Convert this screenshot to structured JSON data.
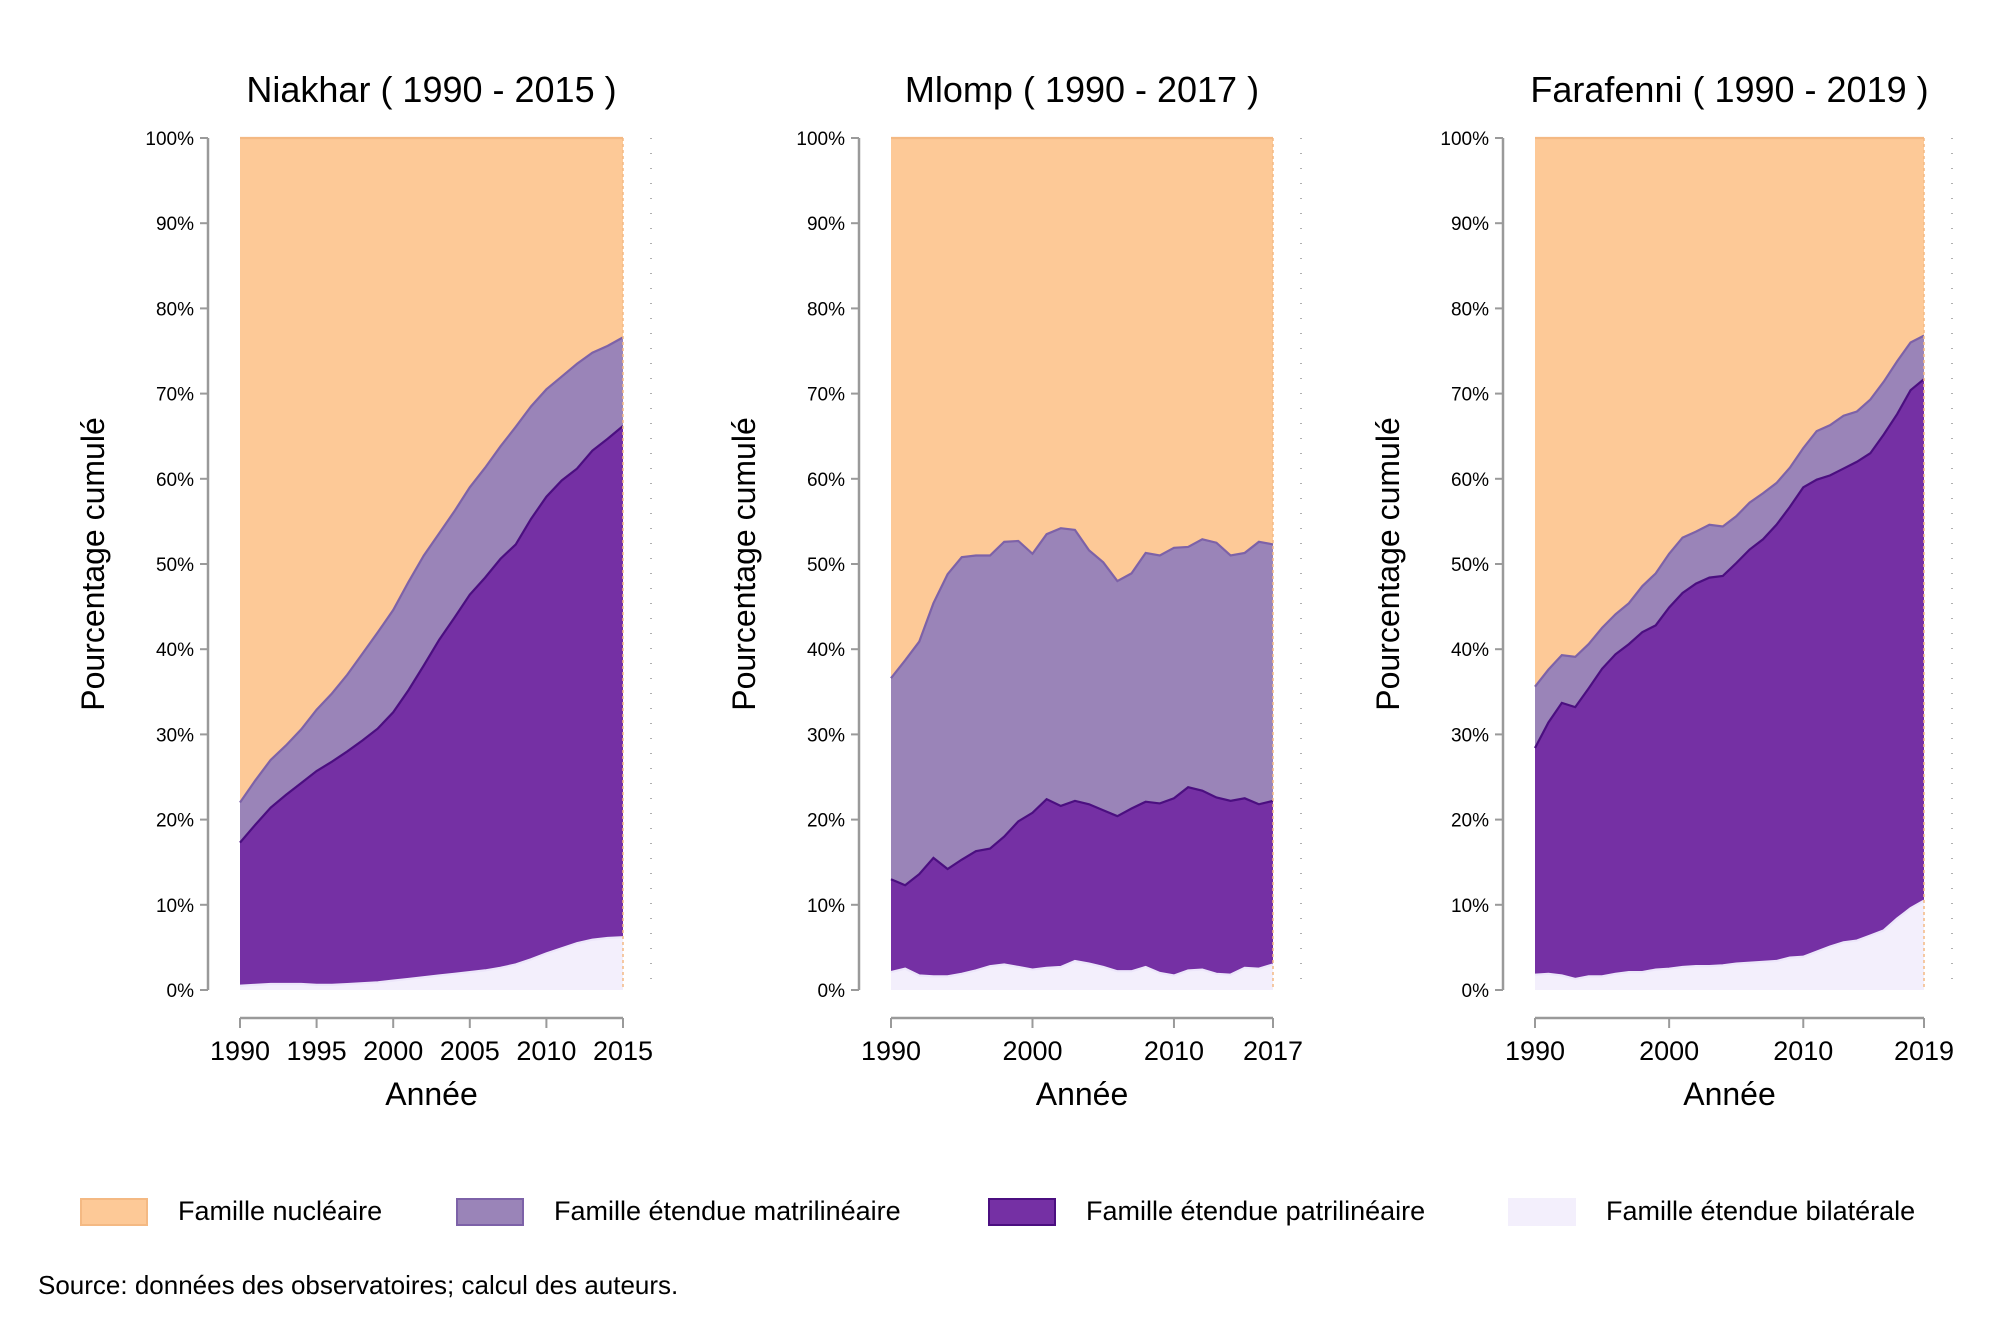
{
  "chart_data": [
    {
      "type": "area",
      "stacked": "percent",
      "title": "Niakhar ( 1990 - 2015 )",
      "xlabel": "Année",
      "ylabel": "Pourcentage cumulé",
      "xlim": [
        1990,
        2015
      ],
      "ylim": [
        0,
        100
      ],
      "xticks": [
        "1990",
        "1995",
        "2000",
        "2005",
        "2010",
        "2015"
      ],
      "yticks": [
        "0%",
        "10%",
        "20%",
        "30%",
        "40%",
        "50%",
        "60%",
        "70%",
        "80%",
        "90%",
        "100%"
      ],
      "x": [
        1990,
        1991,
        1992,
        1993,
        1994,
        1995,
        1996,
        1997,
        1998,
        1999,
        2000,
        2001,
        2002,
        2003,
        2004,
        2005,
        2006,
        2007,
        2008,
        2009,
        2010,
        2011,
        2012,
        2013,
        2014,
        2015
      ],
      "series": [
        {
          "name": "Famille étendue bilatérale",
          "values": [
            0.5,
            0.6,
            0.7,
            0.7,
            0.7,
            0.6,
            0.6,
            0.7,
            0.8,
            0.9,
            1.1,
            1.3,
            1.5,
            1.7,
            1.9,
            2.1,
            2.3,
            2.6,
            3.0,
            3.6,
            4.3,
            4.9,
            5.5,
            5.9,
            6.1,
            6.2
          ]
        },
        {
          "name": "Famille étendue patrilinéaire",
          "values": [
            17.3,
            19.4,
            21.4,
            22.9,
            24.3,
            25.7,
            26.8,
            28.0,
            29.3,
            30.7,
            32.6,
            35.2,
            38.1,
            41.1,
            43.7,
            46.4,
            48.4,
            50.6,
            52.3,
            55.3,
            57.9,
            59.8,
            61.2,
            63.3,
            64.7,
            66.2
          ]
        },
        {
          "name": "Famille étendue matrilinéaire",
          "values": [
            22.0,
            24.6,
            27.0,
            28.7,
            30.6,
            32.9,
            34.8,
            37.0,
            39.5,
            42.0,
            44.6,
            47.9,
            51.0,
            53.6,
            56.2,
            59.0,
            61.3,
            63.8,
            66.1,
            68.5,
            70.5,
            72.0,
            73.5,
            74.8,
            75.6,
            76.6
          ]
        },
        {
          "name": "Famille nucléaire",
          "values": [
            100,
            100,
            100,
            100,
            100,
            100,
            100,
            100,
            100,
            100,
            100,
            100,
            100,
            100,
            100,
            100,
            100,
            100,
            100,
            100,
            100,
            100,
            100,
            100,
            100,
            100
          ]
        }
      ]
    },
    {
      "type": "area",
      "stacked": "percent",
      "title": "Mlomp ( 1990 - 2017 )",
      "xlabel": "Année",
      "ylabel": "Pourcentage cumulé",
      "xlim": [
        1990,
        2017
      ],
      "ylim": [
        0,
        100
      ],
      "xticks": [
        "1990",
        "2000",
        "2010",
        "2017"
      ],
      "yticks": [
        "0%",
        "10%",
        "20%",
        "30%",
        "40%",
        "50%",
        "60%",
        "70%",
        "80%",
        "90%",
        "100%"
      ],
      "x": [
        1990,
        1991,
        1992,
        1993,
        1994,
        1995,
        1996,
        1997,
        1998,
        1999,
        2000,
        2001,
        2002,
        2003,
        2004,
        2005,
        2006,
        2007,
        2008,
        2009,
        2010,
        2011,
        2012,
        2013,
        2014,
        2015,
        2016,
        2017
      ],
      "series": [
        {
          "name": "Famille étendue bilatérale",
          "values": [
            2.1,
            2.5,
            1.7,
            1.6,
            1.6,
            1.9,
            2.3,
            2.8,
            3.0,
            2.7,
            2.4,
            2.6,
            2.7,
            3.4,
            3.1,
            2.7,
            2.2,
            2.2,
            2.7,
            2.0,
            1.7,
            2.3,
            2.4,
            1.9,
            1.8,
            2.6,
            2.5,
            3.0
          ]
        },
        {
          "name": "Famille étendue patrilinéaire",
          "values": [
            13.0,
            12.3,
            13.6,
            15.5,
            14.2,
            15.3,
            16.3,
            16.6,
            18.0,
            19.8,
            20.8,
            22.4,
            21.6,
            22.2,
            21.8,
            21.1,
            20.4,
            21.3,
            22.1,
            21.9,
            22.5,
            23.8,
            23.4,
            22.6,
            22.2,
            22.5,
            21.8,
            22.2
          ]
        },
        {
          "name": "Famille étendue matrilinéaire",
          "values": [
            36.6,
            38.7,
            40.9,
            45.4,
            48.8,
            50.8,
            51.0,
            51.0,
            52.6,
            52.7,
            51.2,
            53.5,
            54.2,
            54.0,
            51.6,
            50.2,
            48.0,
            48.9,
            51.3,
            51.0,
            51.9,
            52.0,
            52.9,
            52.5,
            51.0,
            51.3,
            52.6,
            52.3
          ]
        },
        {
          "name": "Famille nucléaire",
          "values": [
            100,
            100,
            100,
            100,
            100,
            100,
            100,
            100,
            100,
            100,
            100,
            100,
            100,
            100,
            100,
            100,
            100,
            100,
            100,
            100,
            100,
            100,
            100,
            100,
            100,
            100,
            100,
            100
          ]
        }
      ]
    },
    {
      "type": "area",
      "stacked": "percent",
      "title": "Farafenni ( 1990 - 2019 )",
      "xlabel": "Année",
      "ylabel": "Pourcentage cumulé",
      "xlim": [
        1990,
        2019
      ],
      "ylim": [
        0,
        100
      ],
      "xticks": [
        "1990",
        "2000",
        "2010",
        "2019"
      ],
      "yticks": [
        "0%",
        "10%",
        "20%",
        "30%",
        "40%",
        "50%",
        "60%",
        "70%",
        "80%",
        "90%",
        "100%"
      ],
      "x": [
        1990,
        1991,
        1992,
        1993,
        1994,
        1995,
        1996,
        1997,
        1998,
        1999,
        2000,
        2001,
        2002,
        2003,
        2004,
        2005,
        2006,
        2007,
        2008,
        2009,
        2010,
        2011,
        2012,
        2013,
        2014,
        2015,
        2016,
        2017,
        2018,
        2019
      ],
      "series": [
        {
          "name": "Famille étendue bilatérale",
          "values": [
            1.8,
            1.9,
            1.7,
            1.3,
            1.6,
            1.6,
            1.9,
            2.1,
            2.1,
            2.4,
            2.5,
            2.7,
            2.8,
            2.8,
            2.9,
            3.1,
            3.2,
            3.3,
            3.4,
            3.8,
            3.9,
            4.5,
            5.1,
            5.6,
            5.8,
            6.4,
            7.0,
            8.4,
            9.6,
            10.5
          ]
        },
        {
          "name": "Famille étendue patrilinéaire",
          "values": [
            28.4,
            31.4,
            33.7,
            33.2,
            35.4,
            37.7,
            39.4,
            40.6,
            42.0,
            42.8,
            44.9,
            46.6,
            47.7,
            48.4,
            48.6,
            50.1,
            51.7,
            52.9,
            54.6,
            56.7,
            59.0,
            59.9,
            60.4,
            61.2,
            62.0,
            63.0,
            65.2,
            67.6,
            70.4,
            71.7
          ]
        },
        {
          "name": "Famille étendue matrilinéaire",
          "values": [
            35.6,
            37.6,
            39.3,
            39.1,
            40.6,
            42.5,
            44.1,
            45.4,
            47.4,
            48.9,
            51.2,
            53.1,
            53.8,
            54.6,
            54.4,
            55.6,
            57.2,
            58.3,
            59.5,
            61.3,
            63.6,
            65.6,
            66.3,
            67.4,
            67.9,
            69.3,
            71.4,
            73.8,
            76.0,
            76.8
          ]
        },
        {
          "name": "Famille nucléaire",
          "values": [
            100,
            100,
            100,
            100,
            100,
            100,
            100,
            100,
            100,
            100,
            100,
            100,
            100,
            100,
            100,
            100,
            100,
            100,
            100,
            100,
            100,
            100,
            100,
            100,
            100,
            100,
            100,
            100,
            100,
            100
          ]
        }
      ]
    }
  ],
  "colors": {
    "nucleaire_fill": "#fdc997",
    "nucleaire_line": "#f4b983",
    "matri_fill": "#9a84b8",
    "matri_line": "#7d62a8",
    "patri_fill": "#7530a4",
    "patri_line": "#4b0f80",
    "bilat_fill": "#f3effc",
    "bilat_line": "#ece6fa",
    "axis": "#9a9a9a"
  },
  "legend": {
    "items": [
      {
        "label": "Famille nucléaire",
        "fill": "#fdc997",
        "stroke": "#f4b983"
      },
      {
        "label": "Famille étendue matrilinéaire",
        "fill": "#9a84b8",
        "stroke": "#7d62a8"
      },
      {
        "label": "Famille étendue patrilinéaire",
        "fill": "#7530a4",
        "stroke": "#4b0f80"
      },
      {
        "label": "Famille étendue bilatérale",
        "fill": "#f3effc",
        "stroke": "#f3effc"
      }
    ]
  },
  "source": "Source: données des observatoires; calcul des auteurs."
}
